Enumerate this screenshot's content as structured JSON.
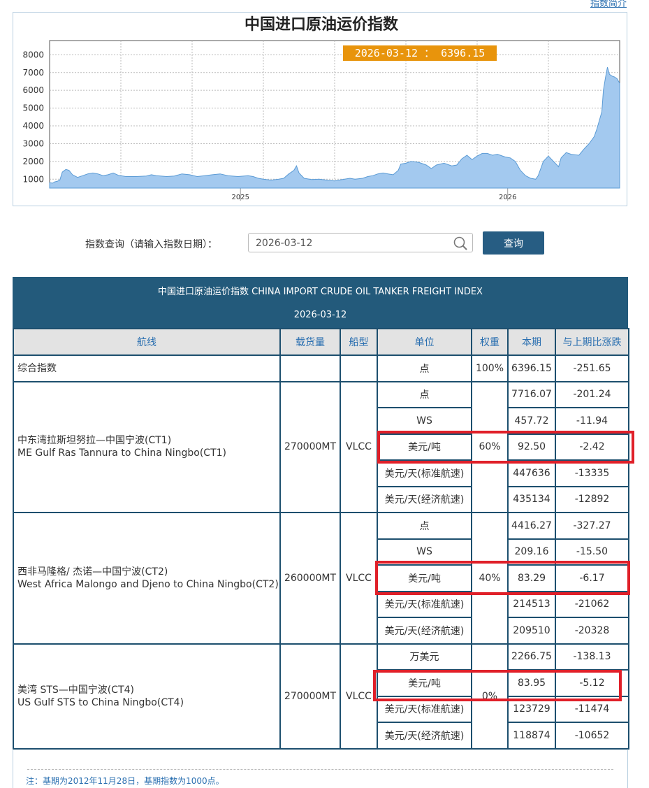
{
  "top_link": "指数简介",
  "chart_data": {
    "type": "area",
    "title": "中国进口原油运价指数",
    "tooltip": "2026-03-12 ： 6396.15",
    "y_ticks": [
      1000,
      2000,
      3000,
      4000,
      5000,
      6000,
      7000,
      8000
    ],
    "x_ticks": [
      "2025",
      "2026"
    ],
    "ylim": [
      500,
      8800
    ],
    "points": [
      [
        0,
        800
      ],
      [
        0.006,
        780
      ],
      [
        0.01,
        850
      ],
      [
        0.015,
        880
      ],
      [
        0.02,
        950
      ],
      [
        0.025,
        1400
      ],
      [
        0.032,
        1550
      ],
      [
        0.038,
        1500
      ],
      [
        0.045,
        1250
      ],
      [
        0.055,
        1100
      ],
      [
        0.065,
        1200
      ],
      [
        0.075,
        1300
      ],
      [
        0.085,
        1350
      ],
      [
        0.095,
        1300
      ],
      [
        0.105,
        1200
      ],
      [
        0.115,
        1250
      ],
      [
        0.125,
        1350
      ],
      [
        0.135,
        1220
      ],
      [
        0.15,
        1150
      ],
      [
        0.17,
        1150
      ],
      [
        0.19,
        1180
      ],
      [
        0.2,
        1250
      ],
      [
        0.21,
        1200
      ],
      [
        0.23,
        1150
      ],
      [
        0.245,
        1180
      ],
      [
        0.26,
        1300
      ],
      [
        0.275,
        1250
      ],
      [
        0.29,
        1150
      ],
      [
        0.305,
        1200
      ],
      [
        0.32,
        1250
      ],
      [
        0.335,
        1300
      ],
      [
        0.35,
        1200
      ],
      [
        0.37,
        1150
      ],
      [
        0.39,
        1200
      ],
      [
        0.4,
        1150
      ],
      [
        0.41,
        1050
      ],
      [
        0.42,
        1000
      ],
      [
        0.435,
        950
      ],
      [
        0.45,
        1000
      ],
      [
        0.46,
        1050
      ],
      [
        0.47,
        1300
      ],
      [
        0.48,
        1500
      ],
      [
        0.485,
        1750
      ],
      [
        0.49,
        1350
      ],
      [
        0.5,
        1050
      ],
      [
        0.515,
        980
      ],
      [
        0.53,
        1000
      ],
      [
        0.545,
        950
      ],
      [
        0.56,
        900
      ],
      [
        0.575,
        980
      ],
      [
        0.59,
        1050
      ],
      [
        0.6,
        1000
      ],
      [
        0.615,
        1050
      ],
      [
        0.625,
        1150
      ],
      [
        0.635,
        1200
      ],
      [
        0.645,
        1300
      ],
      [
        0.655,
        1350
      ],
      [
        0.665,
        1300
      ],
      [
        0.675,
        1250
      ],
      [
        0.685,
        1500
      ],
      [
        0.69,
        1850
      ],
      [
        0.7,
        1900
      ],
      [
        0.71,
        2000
      ],
      [
        0.725,
        1950
      ],
      [
        0.74,
        1800
      ],
      [
        0.75,
        1600
      ],
      [
        0.76,
        1800
      ],
      [
        0.775,
        1900
      ],
      [
        0.79,
        1750
      ],
      [
        0.8,
        1800
      ],
      [
        0.81,
        2150
      ],
      [
        0.82,
        2350
      ],
      [
        0.83,
        2100
      ],
      [
        0.84,
        2300
      ],
      [
        0.85,
        2450
      ],
      [
        0.86,
        2450
      ],
      [
        0.87,
        2350
      ],
      [
        0.88,
        2400
      ],
      [
        0.895,
        2250
      ],
      [
        0.905,
        2200
      ],
      [
        0.915,
        2000
      ],
      [
        0.925,
        1500
      ],
      [
        0.935,
        1200
      ],
      [
        0.945,
        1050
      ],
      [
        0.955,
        1000
      ],
      [
        0.96,
        1200
      ],
      [
        0.965,
        1600
      ],
      [
        0.97,
        2000
      ],
      [
        0.98,
        2300
      ],
      [
        0.99,
        2000
      ],
      [
        1.0,
        1700
      ],
      [
        1.005,
        2200
      ],
      [
        1.015,
        2500
      ],
      [
        1.025,
        2400
      ],
      [
        1.04,
        2350
      ],
      [
        1.05,
        2700
      ],
      [
        1.06,
        3000
      ],
      [
        1.07,
        3400
      ],
      [
        1.075,
        3800
      ],
      [
        1.08,
        4300
      ],
      [
        1.085,
        4800
      ],
      [
        1.088,
        6000
      ],
      [
        1.092,
        6700
      ],
      [
        1.096,
        7300
      ],
      [
        1.1,
        6900
      ],
      [
        1.105,
        6800
      ],
      [
        1.11,
        6750
      ],
      [
        1.115,
        6650
      ],
      [
        1.12,
        6400
      ]
    ]
  },
  "query": {
    "label": "指数查询（请输入指数日期）：",
    "value": "2026-03-12",
    "button": "查询"
  },
  "table": {
    "title": "中国进口原油运价指数 CHINA IMPORT CRUDE OIL TANKER FREIGHT INDEX",
    "date": "2026-03-12",
    "headers": [
      "航线",
      "载货量",
      "船型",
      "单位",
      "权重",
      "本期",
      "与上期比涨跌"
    ],
    "composite": {
      "route": "综合指数",
      "unit": "点",
      "weight": "100%",
      "current": "6396.15",
      "change": "-251.65"
    },
    "groups": [
      {
        "route_cn": "中东湾拉斯坦努拉—中国宁波(CT1)",
        "route_en": "ME Gulf Ras Tannura to China Ningbo(CT1)",
        "capacity": "270000MT",
        "ship": "VLCC",
        "weight": "60%",
        "rows": [
          {
            "unit": "点",
            "current": "7716.07",
            "change": "-201.24"
          },
          {
            "unit": "WS",
            "current": "457.72",
            "change": "-11.94"
          },
          {
            "unit": "美元/吨",
            "current": "92.50",
            "change": "-2.42"
          },
          {
            "unit": "美元/天(标准航速)",
            "current": "447636",
            "change": "-13335"
          },
          {
            "unit": "美元/天(经济航速)",
            "current": "435134",
            "change": "-12892"
          }
        ]
      },
      {
        "route_cn": "西非马隆格/ 杰诺—中国宁波(CT2)",
        "route_en": "West Africa Malongo and Djeno to China Ningbo(CT2)",
        "capacity": "260000MT",
        "ship": "VLCC",
        "weight": "40%",
        "rows": [
          {
            "unit": "点",
            "current": "4416.27",
            "change": "-327.27"
          },
          {
            "unit": "WS",
            "current": "209.16",
            "change": "-15.50"
          },
          {
            "unit": "美元/吨",
            "current": "83.29",
            "change": "-6.17"
          },
          {
            "unit": "美元/天(标准航速)",
            "current": "214513",
            "change": "-21062"
          },
          {
            "unit": "美元/天(经济航速)",
            "current": "209510",
            "change": "-20328"
          }
        ]
      },
      {
        "route_cn": "美湾 STS—中国宁波(CT4)",
        "route_en": "US Gulf STS to China Ningbo(CT4)",
        "capacity": "270000MT",
        "ship": "VLCC",
        "weight": "0%",
        "rows": [
          {
            "unit": "万美元",
            "current": "2266.75",
            "change": "-138.13"
          },
          {
            "unit": "美元/吨",
            "current": "83.95",
            "change": "-5.12"
          },
          {
            "unit": "美元/天(标准航速)",
            "current": "123729",
            "change": "-11474"
          },
          {
            "unit": "美元/天(经济航速)",
            "current": "118874",
            "change": "-10652"
          }
        ]
      }
    ]
  },
  "note": "注：基期为2012年11月28日，基期指数为1000点。",
  "colors": {
    "header_bg": "#235a7b",
    "border": "#1d4f6e",
    "highlight": "#e02029",
    "tooltip_bg": "#e8940c",
    "area_fill": "#a3c9ef",
    "area_stroke": "#5b9bd5"
  }
}
